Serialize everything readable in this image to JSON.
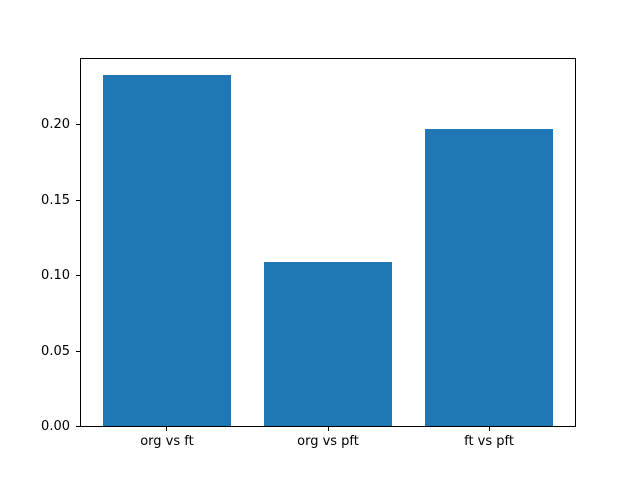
{
  "chart_data": {
    "type": "bar",
    "title": "",
    "xlabel": "",
    "ylabel": "",
    "categories": [
      "org vs ft",
      "org vs pft",
      "ft vs pft"
    ],
    "values": [
      0.233,
      0.109,
      0.197
    ],
    "ylim": [
      0,
      0.2447
    ],
    "yticks": [
      0,
      0.05,
      0.1,
      0.15,
      0.2
    ],
    "ytick_labels": [
      "0.00",
      "0.05",
      "0.10",
      "0.15",
      "0.20"
    ],
    "bar_width_fraction": 0.8,
    "bar_color": "#1f77b4",
    "spine_color": "#000000",
    "text_color": "#000000",
    "background_color": "#ffffff",
    "grid": false,
    "legend": null
  }
}
